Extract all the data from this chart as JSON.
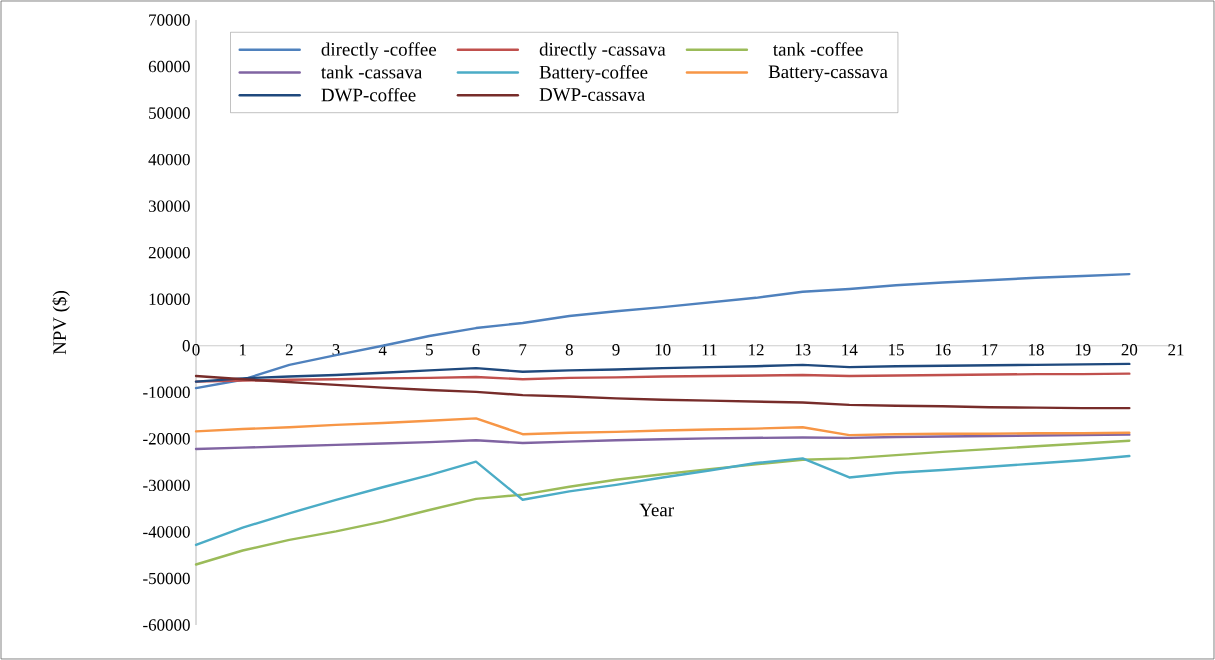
{
  "chart_data": {
    "type": "line",
    "xlabel": "Year",
    "ylabel": "NPV ($)",
    "x": [
      0,
      1,
      2,
      3,
      4,
      5,
      6,
      7,
      8,
      9,
      10,
      11,
      12,
      13,
      14,
      15,
      16,
      17,
      18,
      19,
      20
    ],
    "xlim": [
      0,
      21
    ],
    "xticks": [
      0,
      1,
      2,
      3,
      4,
      5,
      6,
      7,
      8,
      9,
      10,
      11,
      12,
      13,
      14,
      15,
      16,
      17,
      18,
      19,
      20,
      21
    ],
    "ylim": [
      -60000,
      70000
    ],
    "yticks": [
      -60000,
      -50000,
      -40000,
      -30000,
      -20000,
      -10000,
      0,
      10000,
      20000,
      30000,
      40000,
      50000,
      60000,
      70000
    ],
    "legend": "top",
    "grid": false,
    "marker": "none",
    "line_style": "solid",
    "series": [
      {
        "name": "directly -coffee",
        "color": "#4f81bd",
        "values": [
          -9100,
          -7300,
          -4100,
          -2000,
          0,
          2100,
          3800,
          4900,
          6400,
          7400,
          8300,
          9300,
          10300,
          11600,
          12200,
          13000,
          13600,
          14100,
          14600,
          15000,
          15400
        ]
      },
      {
        "name": "directly -cassava",
        "color": "#c0504d",
        "values": [
          -7700,
          -7500,
          -7300,
          -7200,
          -7000,
          -6900,
          -6700,
          -7200,
          -6900,
          -6800,
          -6600,
          -6500,
          -6400,
          -6300,
          -6500,
          -6400,
          -6300,
          -6200,
          -6100,
          -6100,
          -6000
        ]
      },
      {
        "name": " tank -coffee",
        "color": "#9bbb59",
        "values": [
          -47000,
          -44000,
          -41700,
          -39900,
          -37800,
          -35300,
          -32900,
          -32000,
          -30300,
          -28800,
          -27600,
          -26500,
          -25500,
          -24500,
          -24200,
          -23500,
          -22800,
          -22200,
          -21600,
          -21000,
          -20400
        ]
      },
      {
        "name": "tank -cassava",
        "color": "#8064a2",
        "values": [
          -22200,
          -21900,
          -21600,
          -21300,
          -21000,
          -20700,
          -20300,
          -20900,
          -20600,
          -20300,
          -20100,
          -19900,
          -19800,
          -19700,
          -19800,
          -19600,
          -19500,
          -19400,
          -19300,
          -19200,
          -19100
        ]
      },
      {
        "name": "Battery-coffee",
        "color": "#4bacc6",
        "values": [
          -42800,
          -39100,
          -36000,
          -33100,
          -30400,
          -27800,
          -24900,
          -33100,
          -31300,
          -29900,
          -28300,
          -26800,
          -25200,
          -24200,
          -28300,
          -27300,
          -26700,
          -26000,
          -25300,
          -24600,
          -23700
        ]
      },
      {
        "name": "Battery-cassava",
        "color": "#f79646",
        "values": [
          -18400,
          -17900,
          -17500,
          -17000,
          -16600,
          -16100,
          -15600,
          -19000,
          -18700,
          -18500,
          -18200,
          -18000,
          -17800,
          -17500,
          -19200,
          -19000,
          -18900,
          -18900,
          -18800,
          -18800,
          -18700
        ]
      },
      {
        "name": "DWP-coffee",
        "color": "#1f497d",
        "values": [
          -7700,
          -7000,
          -6600,
          -6300,
          -5800,
          -5300,
          -4800,
          -5600,
          -5300,
          -5100,
          -4800,
          -4600,
          -4400,
          -4100,
          -4600,
          -4400,
          -4300,
          -4200,
          -4100,
          -4000,
          -3900
        ]
      },
      {
        "name": "DWP-cassava",
        "color": "#772c2a",
        "values": [
          -6500,
          -7200,
          -7800,
          -8400,
          -9000,
          -9500,
          -9900,
          -10600,
          -10900,
          -11300,
          -11600,
          -11800,
          -12000,
          -12200,
          -12700,
          -12900,
          -13000,
          -13200,
          -13300,
          -13400,
          -13400
        ]
      }
    ]
  }
}
